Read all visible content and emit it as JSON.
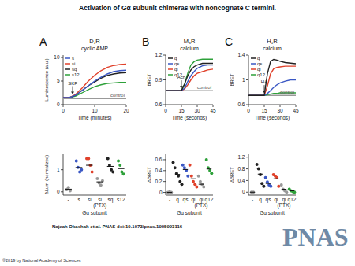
{
  "title": "Activation of Gα subunit chimeras with noncognate C termini.",
  "citation": "Najeah Okashah et al. PNAS doi:10.1073/pnas.1905993116",
  "logo": "PNAS",
  "copyright": "©2019 by National Academy of Sciences",
  "chart_data": [
    {
      "type": "line",
      "panel_label": "A",
      "title": "D₁R",
      "subtitle": "cyclic AMP",
      "x_label": "Time (minutes)",
      "y_label": "Luminescence (a.u.)",
      "x": [
        0,
        2,
        4,
        6,
        8,
        10,
        12,
        14,
        16,
        18,
        20
      ],
      "xlim": [
        0,
        20
      ],
      "xticks": [
        0,
        10,
        20
      ],
      "ylim": [
        0,
        10.5
      ],
      "yticks": [
        0,
        5,
        10
      ],
      "legend": "upper left",
      "grid": false,
      "annotations": [
        {
          "text": "SKF",
          "x": 3
        }
      ],
      "series": [
        {
          "name": "s",
          "color": "#3a57c4",
          "values": [
            1.5,
            1.5,
            2,
            3,
            4,
            5,
            5.8,
            6.5,
            7,
            7.2,
            7.3
          ]
        },
        {
          "name": "si",
          "color": "#e0412b",
          "values": [
            1.5,
            1.5,
            2.2,
            3.5,
            5,
            6.2,
            7.2,
            7.9,
            8.3,
            8.5,
            8.6
          ]
        },
        {
          "name": "sq",
          "color": "#222222",
          "values": [
            1.5,
            1.5,
            2,
            3,
            4,
            4.8,
            5.6,
            6.2,
            6.5,
            6.7,
            6.8
          ]
        },
        {
          "name": "s12",
          "color": "#2ea13a",
          "values": [
            1.5,
            1.5,
            1.8,
            2.5,
            3.2,
            3.8,
            4.2,
            4.5,
            4.6,
            4.7,
            4.7
          ]
        },
        {
          "name": "control",
          "color": "#999999",
          "values": [
            1.3,
            1.3,
            1.3,
            1.3,
            1.3,
            1.3,
            1.3,
            1.3,
            1.3,
            1.3,
            1.3
          ]
        }
      ]
    },
    {
      "type": "line",
      "panel_label": "B",
      "title": "M₃R",
      "subtitle": "calcium",
      "x_label": "Time (seconds)",
      "y_label": "BRET",
      "x": [
        0,
        5,
        10,
        15,
        18,
        21,
        24,
        27,
        30,
        35,
        40,
        45
      ],
      "xlim": [
        0,
        45
      ],
      "xticks": [
        0,
        15,
        30,
        45
      ],
      "ylim": [
        0.6,
        1.2
      ],
      "yticks": [
        0.6,
        0.9,
        1.2
      ],
      "legend": "upper left",
      "grid": false,
      "annotations": [
        {
          "text": "Ach",
          "x": 15
        }
      ],
      "series": [
        {
          "name": "q",
          "color": "#222222",
          "values": [
            0.77,
            0.77,
            0.77,
            0.77,
            0.85,
            0.95,
            1.02,
            1.06,
            1.08,
            1.1,
            1.1,
            1.1
          ]
        },
        {
          "name": "qs",
          "color": "#3a57c4",
          "values": [
            0.77,
            0.77,
            0.77,
            0.77,
            0.8,
            0.88,
            0.95,
            1.0,
            1.04,
            1.07,
            1.08,
            1.08
          ]
        },
        {
          "name": "qi",
          "color": "#e0412b",
          "values": [
            0.77,
            0.77,
            0.77,
            0.77,
            0.79,
            0.84,
            0.9,
            0.95,
            0.98,
            1.0,
            1.02,
            1.03
          ]
        },
        {
          "name": "q12",
          "color": "#2ea13a",
          "values": [
            0.77,
            0.77,
            0.77,
            0.77,
            0.85,
            0.98,
            1.08,
            1.12,
            1.14,
            1.15,
            1.15,
            1.15
          ]
        },
        {
          "name": "control",
          "color": "#999999",
          "values": [
            0.77,
            0.77,
            0.77,
            0.77,
            0.77,
            0.77,
            0.77,
            0.77,
            0.77,
            0.77,
            0.77,
            0.77
          ]
        }
      ]
    },
    {
      "type": "line",
      "panel_label": "C",
      "title": "H₁R",
      "subtitle": "calcium",
      "x_label": "Time (seconds)",
      "y_label": "BRET",
      "x": [
        0,
        5,
        10,
        15,
        18,
        21,
        24,
        27,
        30,
        35,
        40,
        45
      ],
      "xlim": [
        0,
        45
      ],
      "xticks": [
        0,
        15,
        30,
        45
      ],
      "ylim": [
        0.6,
        1.4
      ],
      "yticks": [
        0.6,
        1.0,
        1.4
      ],
      "legend": "upper left",
      "grid": false,
      "annotations": [
        {
          "text": "HA",
          "x": 15
        }
      ],
      "series": [
        {
          "name": "q",
          "color": "#222222",
          "values": [
            0.75,
            0.75,
            0.75,
            0.75,
            1.1,
            1.3,
            1.33,
            1.32,
            1.3,
            1.28,
            1.27,
            1.26
          ]
        },
        {
          "name": "qs",
          "color": "#3a57c4",
          "values": [
            0.75,
            0.75,
            0.75,
            0.75,
            0.78,
            0.83,
            0.88,
            0.92,
            0.95,
            0.98,
            1.0,
            1.0
          ]
        },
        {
          "name": "qi",
          "color": "#e0412b",
          "values": [
            0.75,
            0.75,
            0.75,
            0.75,
            0.9,
            1.1,
            1.18,
            1.2,
            1.21,
            1.22,
            1.22,
            1.22
          ]
        },
        {
          "name": "q12",
          "color": "#2ea13a",
          "values": [
            0.75,
            0.75,
            0.75,
            0.75,
            0.76,
            0.77,
            0.78,
            0.78,
            0.79,
            0.79,
            0.79,
            0.79
          ]
        },
        {
          "name": "control",
          "color": "#999999",
          "values": [
            0.75,
            0.75,
            0.75,
            0.75,
            0.75,
            0.75,
            0.75,
            0.75,
            0.75,
            0.75,
            0.75,
            0.75
          ]
        }
      ]
    },
    {
      "type": "dot",
      "x_label": "Gα subunit",
      "y_label": "ΔLum (normalized)",
      "ylim": [
        -0.15,
        1.7
      ],
      "yticks": [
        0,
        1
      ],
      "grid": false,
      "categories": [
        "-",
        "s",
        "si",
        "si (PTX)",
        "sq",
        "s12"
      ],
      "colors": [
        "#999999",
        "#3a57c4",
        "#e0412b",
        "#999999",
        "#222222",
        "#2ea13a"
      ],
      "values": [
        [
          0.1,
          0.2,
          0.05
        ],
        [
          1.4,
          1.1,
          0.9,
          1.0
        ],
        [
          1.5,
          1.5,
          1.2,
          0.9
        ],
        [
          0.6,
          0.4,
          0.3,
          0.5
        ],
        [
          1.5,
          1.2,
          1.0,
          0.9
        ],
        [
          1.4,
          1.2,
          0.9,
          0.8
        ]
      ],
      "means": [
        0.12,
        1.1,
        1.2,
        0.45,
        1.15,
        1.05
      ]
    },
    {
      "type": "dot",
      "x_label": "Gα subunit",
      "y_label": "ΔBRET",
      "ylim": [
        -0.05,
        0.7
      ],
      "yticks": [
        0,
        0.2,
        0.4,
        0.6
      ],
      "grid": false,
      "categories": [
        "-",
        "q",
        "qs",
        "qi",
        "qi (PTX)",
        "q12"
      ],
      "colors": [
        "#999999",
        "#222222",
        "#3a57c4",
        "#e0412b",
        "#999999",
        "#2ea13a"
      ],
      "values": [
        [
          0.0,
          0.01,
          0.0
        ],
        [
          0.55,
          0.45,
          0.35,
          0.3,
          0.2,
          0.15
        ],
        [
          0.5,
          0.45,
          0.4,
          0.3
        ],
        [
          0.5,
          0.3,
          0.2,
          0.15,
          0.1
        ],
        [
          0.3,
          0.2,
          0.15,
          0.1
        ],
        [
          0.6,
          0.45,
          0.4,
          0.35
        ]
      ],
      "means": [
        0,
        0.33,
        0.42,
        0.25,
        0.15,
        0.43
      ]
    },
    {
      "type": "dot",
      "x_label": "Gα subunit",
      "y_label": "ΔBRET",
      "ylim": [
        -0.1,
        1.3
      ],
      "yticks": [
        0,
        0.4,
        0.8,
        1.2
      ],
      "grid": false,
      "categories": [
        "-",
        "q",
        "qs",
        "qi",
        "qi (PTX)",
        "q12"
      ],
      "colors": [
        "#999999",
        "#222222",
        "#3a57c4",
        "#e0412b",
        "#999999",
        "#2ea13a"
      ],
      "values": [
        [
          0.0,
          0.0
        ],
        [
          0.95,
          0.8,
          0.6,
          0.3,
          0.2
        ],
        [
          0.5,
          0.35,
          0.25,
          0.2
        ],
        [
          0.6,
          0.55,
          0.5,
          0.2
        ],
        [
          0.25,
          0.1,
          0.05,
          0.0
        ],
        [
          0.1,
          0.05,
          0.02,
          0.0
        ]
      ],
      "means": [
        0,
        0.62,
        0.3,
        0.46,
        0.1,
        0.05
      ]
    }
  ]
}
